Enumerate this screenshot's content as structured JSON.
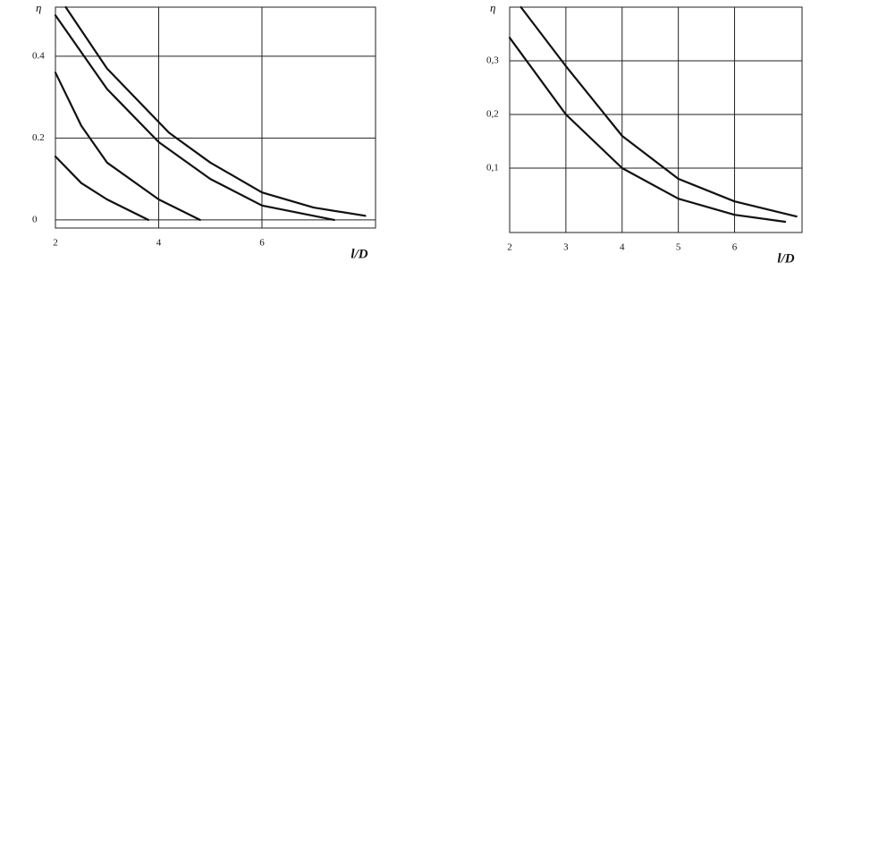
{
  "chart_data": [
    {
      "type": "line",
      "ylabel": "η",
      "xlabel": "l/D",
      "xlim": [
        2,
        8.2
      ],
      "ylim": [
        -0.02,
        0.52
      ],
      "xticks": [
        2,
        4,
        6
      ],
      "yticks": [
        0,
        0.2,
        0.4
      ],
      "grid": true,
      "series": [
        {
          "color": "#111111",
          "x": [
            2.2,
            3,
            4.2,
            5,
            6,
            7,
            8
          ],
          "values": [
            0.52,
            0.37,
            0.213,
            0.14,
            0.067,
            0.03,
            0.01
          ]
        },
        {
          "color": "#111111",
          "x": [
            2,
            3,
            4,
            5,
            6,
            7.4
          ],
          "values": [
            0.5,
            0.32,
            0.19,
            0.1,
            0.035,
            0.0
          ]
        },
        {
          "color": "#111111",
          "x": [
            2,
            2.5,
            3,
            4,
            4.8
          ],
          "values": [
            0.36,
            0.23,
            0.14,
            0.05,
            0.0
          ]
        },
        {
          "color": "#111111",
          "x": [
            2,
            2.5,
            3,
            3.8
          ],
          "values": [
            0.155,
            0.09,
            0.05,
            0.0
          ]
        }
      ]
    },
    {
      "type": "line",
      "ylabel": "η",
      "xlabel": "l/D",
      "xlim": [
        2,
        7.2
      ],
      "ylim": [
        -0.02,
        0.4
      ],
      "xticks": [
        2,
        3,
        4,
        5,
        6
      ],
      "yticks": [
        {
          "value": 0.1,
          "label": "0,1"
        },
        {
          "value": 0.2,
          "label": "0,2"
        },
        {
          "value": 0.3,
          "label": "0,3"
        }
      ],
      "grid": true,
      "series": [
        {
          "color": "#111111",
          "x": [
            2.2,
            3,
            4,
            5,
            6,
            7.1
          ],
          "values": [
            0.4,
            0.29,
            0.16,
            0.08,
            0.038,
            0.01
          ]
        },
        {
          "color": "#111111",
          "x": [
            2,
            3,
            4,
            5,
            6,
            6.9
          ],
          "values": [
            0.343,
            0.2,
            0.1,
            0.043,
            0.013,
            0.0
          ]
        }
      ]
    }
  ]
}
